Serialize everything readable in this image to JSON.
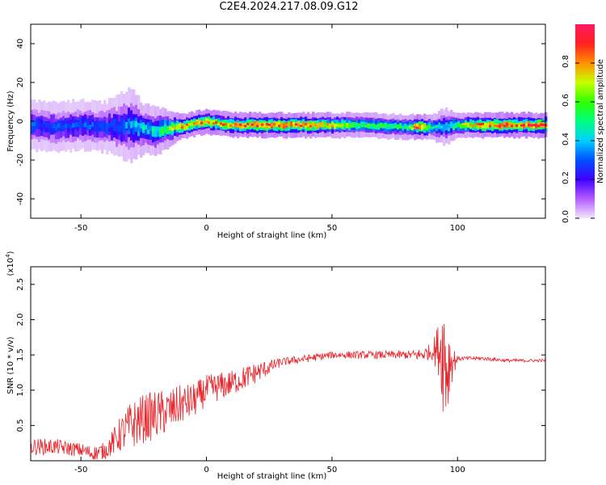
{
  "title": "C2E4.2024.217.08.09.G12",
  "chart_data": [
    {
      "type": "heatmap",
      "xlabel": "Height of straight line (km)",
      "ylabel": "Frequency (Hz)",
      "xlim": [
        -70,
        135
      ],
      "ylim": [
        -50,
        50
      ],
      "xticks": [
        -50,
        0,
        50,
        100
      ],
      "xtick_labels": [
        "-50",
        "0",
        "50",
        "100"
      ],
      "yticks": [
        -40,
        -20,
        0,
        20,
        40
      ],
      "ytick_labels": [
        "-40",
        "-20",
        "0",
        "20",
        "40"
      ],
      "colorbar": {
        "label": "Normalized spectral amplitude",
        "range": [
          0,
          1
        ],
        "ticks": [
          0.0,
          0.2,
          0.4,
          0.6,
          0.8
        ],
        "tick_labels": [
          "0.0",
          "0.2",
          "0.4",
          "0.6",
          "0.8"
        ],
        "colors": [
          "#f2e6fb",
          "#b45cff",
          "#4000ff",
          "#0050ff",
          "#00d0ff",
          "#00ff80",
          "#30ff00",
          "#c8ff00",
          "#ff9000",
          "#ff2020",
          "#ff1a60"
        ]
      },
      "band": {
        "x": [
          -70,
          -60,
          -50,
          -40,
          -30,
          -25,
          -20,
          -10,
          0,
          10,
          20,
          40,
          60,
          80,
          85,
          90,
          95,
          100,
          110,
          120,
          135
        ],
        "center_freq": [
          -2,
          -3,
          -2,
          -3,
          -2,
          -4,
          -5,
          -3,
          0,
          -2,
          -2,
          -2,
          -2,
          -3,
          -3,
          -3,
          -3,
          -2,
          -2,
          -2,
          -2
        ],
        "half_width": [
          4,
          4,
          4,
          4,
          6,
          4,
          4,
          2,
          2,
          2,
          2,
          2,
          2,
          2,
          2,
          2,
          3,
          2,
          2,
          2,
          2
        ],
        "amplitude": [
          0.3,
          0.28,
          0.3,
          0.3,
          0.35,
          0.45,
          0.45,
          0.8,
          0.85,
          0.82,
          0.9,
          0.88,
          0.6,
          0.55,
          0.95,
          0.5,
          0.4,
          0.6,
          0.85,
          0.9,
          0.88
        ]
      }
    },
    {
      "type": "line",
      "xlabel": "Height of straight line (km)",
      "ylabel": "SNR (10 * v/v)",
      "y_multiplier_label": "(x10",
      "y_multiplier_exp": "4",
      "y_multiplier_close": ")",
      "xlim": [
        -70,
        135
      ],
      "ylim": [
        0,
        2.75
      ],
      "xticks": [
        -50,
        0,
        50,
        100
      ],
      "xtick_labels": [
        "-50",
        "0",
        "50",
        "100"
      ],
      "yticks": [
        0.5,
        1.0,
        1.5,
        2.0,
        2.5
      ],
      "ytick_labels": [
        "0.5",
        "1.0",
        "1.5",
        "2.0",
        "2.5"
      ],
      "color": "#e8232a",
      "trend": {
        "x": [
          -70,
          -60,
          -50,
          -45,
          -40,
          -35,
          -30,
          -25,
          -20,
          -15,
          -10,
          -5,
          0,
          10,
          20,
          30,
          40,
          50,
          60,
          70,
          80,
          85,
          90,
          93,
          95,
          96,
          97,
          98,
          100,
          110,
          120,
          135
        ],
        "y": [
          0.2,
          0.2,
          0.15,
          0.1,
          0.15,
          0.35,
          0.5,
          0.6,
          0.65,
          0.7,
          0.8,
          0.85,
          1.0,
          1.1,
          1.25,
          1.4,
          1.45,
          1.5,
          1.5,
          1.5,
          1.5,
          1.5,
          1.55,
          1.6,
          1.5,
          1.3,
          1.45,
          1.4,
          1.45,
          1.45,
          1.42,
          1.42
        ]
      },
      "noise": {
        "x": [
          -70,
          -50,
          -40,
          -30,
          -20,
          -10,
          0,
          20,
          30,
          50,
          80,
          90,
          93,
          95,
          97,
          100,
          135
        ],
        "amp": [
          0.12,
          0.1,
          0.12,
          0.35,
          0.35,
          0.28,
          0.22,
          0.15,
          0.06,
          0.05,
          0.06,
          0.12,
          0.45,
          1.1,
          0.4,
          0.03,
          0.02
        ]
      }
    }
  ]
}
